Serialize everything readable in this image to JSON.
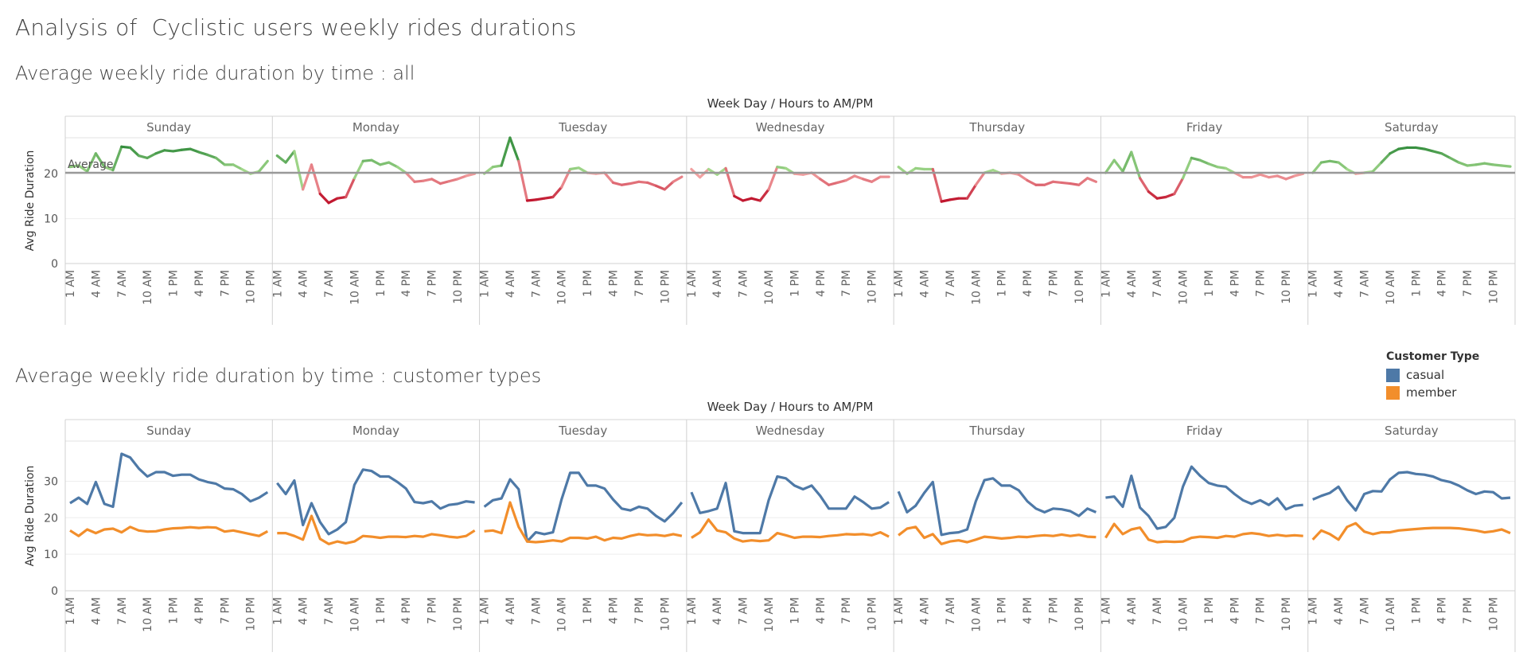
{
  "page": {
    "title": "Analysis of  Cyclistic users weekly rides durations",
    "subtitle_all": "Average weekly ride duration by time : all",
    "subtitle_types": "Average weekly ride duration by time : customer types"
  },
  "legend": {
    "title": "Customer Type",
    "items": [
      {
        "label": "casual",
        "color": "#4e79a7"
      },
      {
        "label": "member",
        "color": "#f28e2b"
      }
    ]
  },
  "chart_data": [
    {
      "type": "line",
      "title": "Average weekly ride duration by time : all",
      "header": "Week Day  /  Hours to AM/PM",
      "ylabel": "Avg Ride Duration",
      "ylim": [
        0,
        28
      ],
      "yticks": [
        0,
        10,
        20
      ],
      "panels": [
        "Sunday",
        "Monday",
        "Tuesday",
        "Wednesday",
        "Thursday",
        "Friday",
        "Saturday"
      ],
      "xtick_labels": [
        "1 AM",
        "4 AM",
        "7 AM",
        "10 AM",
        "1 PM",
        "4 PM",
        "7 PM",
        "10 PM"
      ],
      "reference_line": {
        "label": "Average",
        "value": 20.2
      },
      "color_scale": {
        "low": "#c1172f",
        "mid": "#f7b9b9",
        "high": "#2f8a3a",
        "center": 20.2
      },
      "series": [
        {
          "values": [
            [
              21.5,
              21.8,
              20.5,
              24.5,
              21.5,
              20.8,
              26,
              25.8,
              24,
              23.5,
              24.5,
              25.2,
              25,
              25.3,
              25.5,
              24.8,
              24.2,
              23.5,
              22,
              22,
              21,
              20,
              20.5,
              22.8
            ],
            [
              24,
              22.5,
              25,
              16.5,
              22,
              15.5,
              13.5,
              14.5,
              14.8,
              19,
              22.8,
              23,
              22,
              22.5,
              21.5,
              20.2,
              18.2,
              18.4,
              18.8,
              17.8,
              18.3,
              18.8,
              19.5,
              20
            ],
            [
              20,
              21.5,
              21.8,
              28,
              22.8,
              14,
              14.2,
              14.5,
              14.8,
              17,
              21,
              21.3,
              20.2,
              20,
              20.2,
              18,
              17.5,
              17.8,
              18.2,
              18,
              17.3,
              16.5,
              18.2,
              19.3
            ],
            [
              21,
              19.2,
              21,
              19.8,
              21.2,
              15,
              14,
              14.5,
              14,
              16.5,
              21.5,
              21.2,
              20,
              19.8,
              20.2,
              18.8,
              17.5,
              18,
              18.5,
              19.5,
              18.8,
              18.2,
              19.3,
              19.3
            ],
            [
              21.5,
              20,
              21.2,
              21,
              21,
              13.8,
              14.2,
              14.5,
              14.5,
              17.5,
              20.2,
              20.8,
              20,
              20.2,
              19.8,
              18.5,
              17.5,
              17.5,
              18.2,
              18,
              17.8,
              17.5,
              19,
              18.2
            ],
            [
              20.2,
              23,
              20.5,
              24.8,
              19,
              16,
              14.5,
              14.8,
              15.5,
              19,
              23.5,
              23,
              22.2,
              21.5,
              21.2,
              20.2,
              19.2,
              19.2,
              19.8,
              19.2,
              19.5,
              18.8,
              19.5,
              20
            ],
            [
              20.2,
              22.5,
              22.8,
              22.5,
              21,
              20,
              20.2,
              20.5,
              22.5,
              24.5,
              25.5,
              25.8,
              25.8,
              25.5,
              25,
              24.5,
              23.5,
              22.5,
              21.8,
              22,
              22.3,
              22,
              21.8,
              21.6
            ]
          ]
        }
      ]
    },
    {
      "type": "line",
      "title": "Average weekly ride duration by time : customer types",
      "header": "Week Day  /  Hours to AM/PM",
      "ylabel": "Avg Ride Duration",
      "ylim": [
        0,
        41
      ],
      "yticks": [
        0,
        10,
        20,
        30
      ],
      "panels": [
        "Sunday",
        "Monday",
        "Tuesday",
        "Wednesday",
        "Thursday",
        "Friday",
        "Saturday"
      ],
      "xtick_labels": [
        "1 AM",
        "4 AM",
        "7 AM",
        "10 AM",
        "1 PM",
        "4 PM",
        "7 PM",
        "10 PM"
      ],
      "series": [
        {
          "name": "casual",
          "color": "#4e79a7",
          "values": [
            [
              24,
              25.5,
              23.8,
              29.8,
              23.8,
              23,
              37.5,
              36.5,
              33.5,
              31.3,
              32.5,
              32.5,
              31.5,
              31.8,
              31.8,
              30.5,
              29.8,
              29.3,
              28,
              27.8,
              26.5,
              24.5,
              25.5,
              27
            ],
            [
              29.5,
              26.5,
              30.2,
              18,
              24,
              18.8,
              15.5,
              16.8,
              18.8,
              29,
              33.2,
              32.8,
              31.3,
              31.3,
              29.8,
              28,
              24.3,
              24,
              24.5,
              22.5,
              23.5,
              23.8,
              24.5,
              24.2
            ],
            [
              23,
              24.8,
              25.3,
              30.5,
              27.8,
              13.5,
              16,
              15.5,
              16,
              25,
              32.3,
              32.3,
              28.8,
              28.8,
              28,
              25,
              22.5,
              22,
              23,
              22.5,
              20.5,
              19,
              21.3,
              24.2
            ],
            [
              27,
              21.3,
              21.8,
              22.5,
              29.5,
              16.3,
              15.8,
              15.8,
              15.8,
              24.8,
              31.3,
              30.8,
              28.8,
              27.8,
              28.8,
              26,
              22.5,
              22.5,
              22.5,
              25.8,
              24.3,
              22.5,
              22.8,
              24.3
            ],
            [
              27.2,
              21.5,
              23.3,
              26.8,
              29.8,
              15.3,
              15.8,
              16,
              16.8,
              24.5,
              30.3,
              30.8,
              28.8,
              28.8,
              27.5,
              24.5,
              22.5,
              21.5,
              22.5,
              22.3,
              21.8,
              20.5,
              22.5,
              21.5
            ],
            [
              25.5,
              25.8,
              23,
              31.5,
              22.8,
              20.5,
              17,
              17.5,
              20,
              28.5,
              34,
              31.5,
              29.5,
              28.8,
              28.5,
              26.5,
              24.8,
              23.8,
              24.8,
              23.5,
              25.3,
              22.3,
              23.3,
              23.5
            ],
            [
              25,
              26,
              26.8,
              28.5,
              24.8,
              22,
              26.5,
              27.3,
              27.2,
              30.5,
              32.3,
              32.5,
              32,
              31.8,
              31.3,
              30.3,
              29.8,
              28.8,
              27.5,
              26.5,
              27.2,
              27,
              25.3,
              25.5
            ]
          ]
        },
        {
          "name": "member",
          "color": "#f28e2b",
          "values": [
            [
              16.5,
              15,
              16.8,
              15.8,
              16.8,
              17,
              16,
              17.5,
              16.5,
              16.2,
              16.3,
              16.8,
              17.1,
              17.2,
              17.4,
              17.2,
              17.4,
              17.3,
              16.2,
              16.5,
              16,
              15.5,
              15,
              16.3
            ],
            [
              15.8,
              15.8,
              15,
              14,
              20.5,
              14.2,
              12.8,
              13.5,
              13,
              13.5,
              15,
              14.8,
              14.5,
              14.8,
              14.8,
              14.7,
              15,
              14.8,
              15.5,
              15.2,
              14.8,
              14.6,
              15,
              16.5
            ],
            [
              16.3,
              16.5,
              15.8,
              24.2,
              17.5,
              13.5,
              13.3,
              13.5,
              13.8,
              13.5,
              14.5,
              14.5,
              14.3,
              14.8,
              13.8,
              14.5,
              14.3,
              15,
              15.5,
              15.2,
              15.3,
              15,
              15.5,
              15
            ],
            [
              14.5,
              16,
              19.5,
              16.5,
              16,
              14.3,
              13.5,
              13.8,
              13.6,
              13.8,
              15.8,
              15.2,
              14.5,
              14.8,
              14.8,
              14.7,
              15,
              15.2,
              15.5,
              15.4,
              15.5,
              15.2,
              16,
              14.8
            ],
            [
              15.2,
              17,
              17.5,
              14.5,
              15.5,
              12.8,
              13.5,
              13.8,
              13.3,
              14,
              14.8,
              14.6,
              14.3,
              14.5,
              14.8,
              14.7,
              15,
              15.2,
              15,
              15.4,
              15,
              15.3,
              14.8,
              14.7
            ],
            [
              14.5,
              18.3,
              15.5,
              16.8,
              17.3,
              14,
              13.3,
              13.5,
              13.4,
              13.5,
              14.5,
              14.8,
              14.7,
              14.5,
              15,
              14.8,
              15.5,
              15.8,
              15.5,
              15,
              15.3,
              15,
              15.2,
              15
            ],
            [
              14,
              16.5,
              15.5,
              14,
              17.5,
              18.5,
              16.2,
              15.5,
              16,
              16,
              16.5,
              16.7,
              16.9,
              17.1,
              17.2,
              17.2,
              17.2,
              17.1,
              16.8,
              16.5,
              16,
              16.3,
              16.8,
              15.8
            ]
          ]
        }
      ]
    }
  ]
}
